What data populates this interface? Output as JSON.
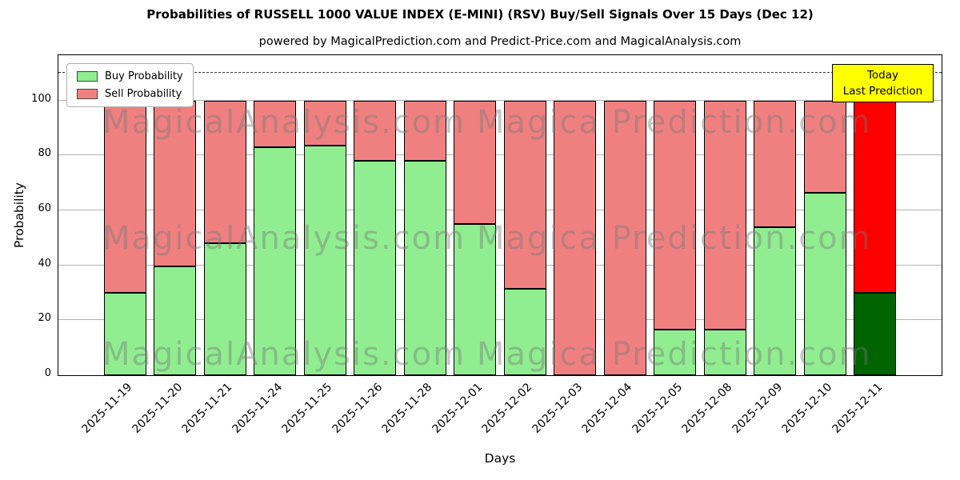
{
  "subtitle": "powered by MagicalPrediction.com and Predict-Price.com and MagicalAnalysis.com",
  "legend": {
    "items": [
      {
        "label": "Buy Probability",
        "color": "#90ee90"
      },
      {
        "label": "Sell Probability",
        "color": "#f08080"
      }
    ]
  },
  "annotation": {
    "lines": [
      "Today",
      "Last Prediction"
    ],
    "bg": "#ffff00"
  },
  "watermark": {
    "left": "MagicalAnalysis.com",
    "right": "Magica Prediction.com"
  },
  "chart_data": {
    "type": "bar",
    "stacked": true,
    "title": "Probabilities of RUSSELL 1000 VALUE INDEX (E-MINI) (RSV) Buy/Sell Signals Over 15 Days (Dec 12)",
    "xlabel": "Days",
    "ylabel": "Probability",
    "categories": [
      "2025-11-19",
      "2025-11-20",
      "2025-11-21",
      "2025-11-24",
      "2025-11-25",
      "2025-11-26",
      "2025-11-28",
      "2025-12-01",
      "2025-12-02",
      "2025-12-03",
      "2025-12-04",
      "2025-12-05",
      "2025-12-08",
      "2025-12-09",
      "2025-12-10",
      "2025-12-11"
    ],
    "series": [
      {
        "name": "Buy Probability",
        "color": "#90ee90",
        "values": [
          30,
          39.5,
          48,
          83,
          83.5,
          78,
          78,
          55,
          31.5,
          0,
          0,
          16.5,
          16.5,
          54,
          66.5,
          30
        ]
      },
      {
        "name": "Sell Probability",
        "color": "#f08080",
        "values": [
          70,
          60.5,
          52,
          17,
          16.5,
          22,
          22,
          45,
          68.5,
          100,
          100,
          83.5,
          83.5,
          46,
          33.5,
          70
        ]
      }
    ],
    "highlight_last": {
      "buy_color": "#006400",
      "sell_color": "#ff0000"
    },
    "ylim": [
      0,
      116.5
    ],
    "yticks": [
      0,
      20,
      40,
      60,
      80,
      100
    ],
    "dashed_line_y": 110,
    "bar_edge_color": "#000000",
    "grid": "horizontal",
    "legend_position": "upper-left"
  }
}
